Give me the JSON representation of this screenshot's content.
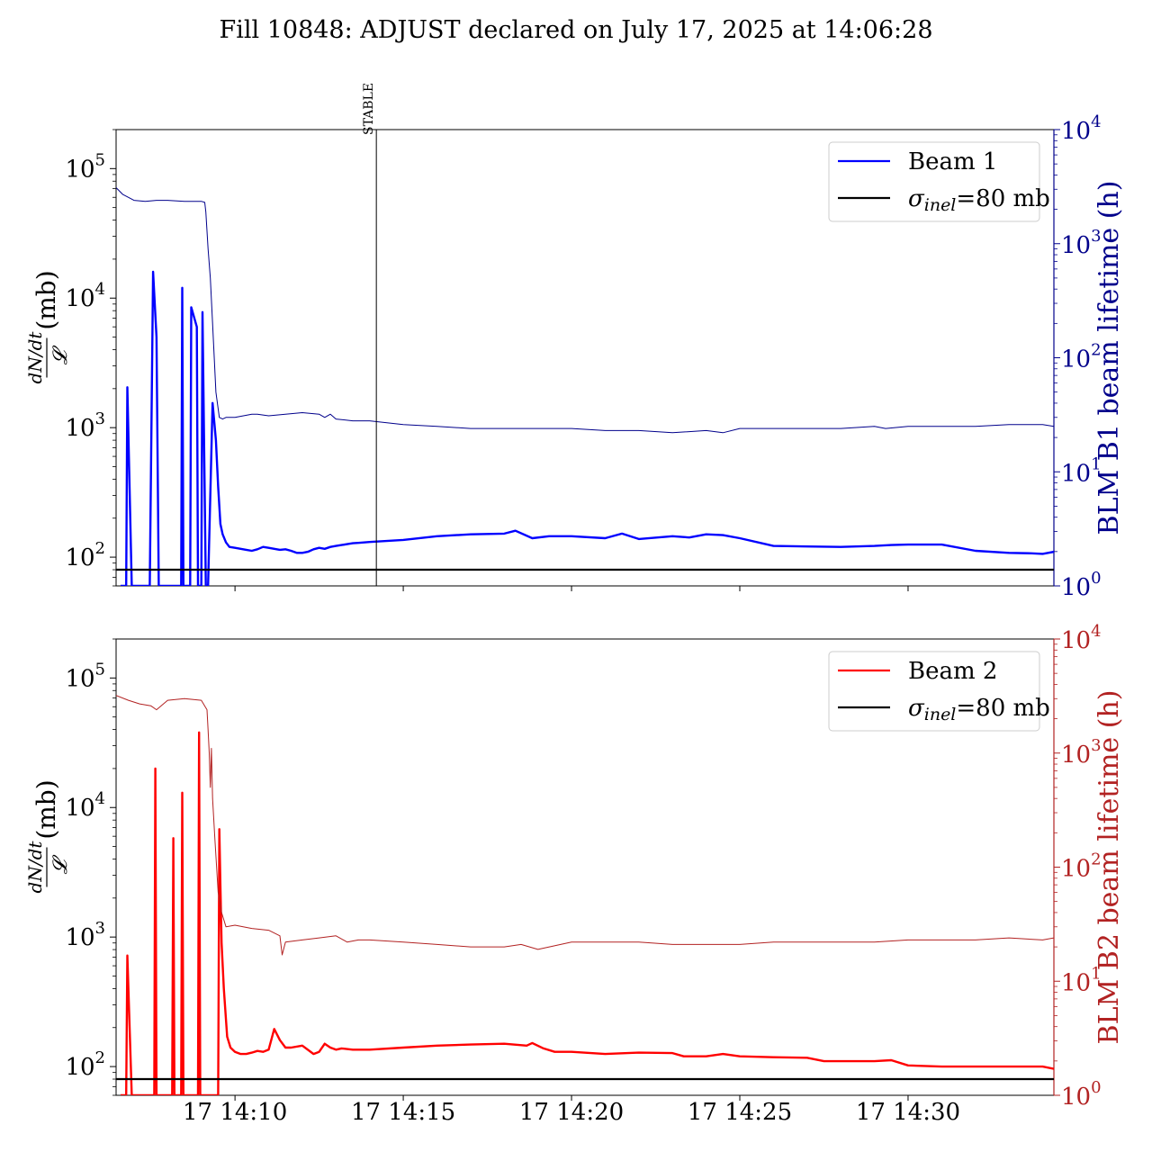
{
  "title": "Fill 10848: ADJUST declared on July 17, 2025 at 14:06:28",
  "colors": {
    "beam1": "#0000ff",
    "beam1_lifetime": "#00008b",
    "beam2": "#ff0000",
    "beam2_lifetime": "#b22222",
    "sigma_line": "#000000"
  },
  "chart_data": [
    {
      "type": "line",
      "panel": "top",
      "ylabel_left": "dN/dt / 𝓛 (mb)",
      "ylabel_right": "BLM B1 beam lifetime (h)",
      "y_scale": "log",
      "ylim_left": [
        60,
        200000
      ],
      "ylim_right": [
        1,
        10000
      ],
      "xlim": [
        "14:06:28",
        "14:34:20"
      ],
      "xticks": [],
      "marker": {
        "label": "STABLE",
        "x": "14:14:12"
      },
      "legend": {
        "placement": "top-right",
        "entries": [
          "Beam 1",
          "σinel=80 mb"
        ]
      },
      "series": [
        {
          "name": "Beam 1",
          "axis": "left",
          "x": [
            "14:06:36",
            "14:06:46",
            "14:06:48",
            "14:06:56",
            "14:07:28",
            "14:07:34",
            "14:07:40",
            "14:07:44",
            "14:07:46",
            "14:08:24",
            "14:08:26",
            "14:08:28",
            "14:08:40",
            "14:08:42",
            "14:08:52",
            "14:08:54",
            "14:09:00",
            "14:09:02",
            "14:09:08",
            "14:09:12",
            "14:09:20",
            "14:09:26",
            "14:09:30",
            "14:09:34",
            "14:09:38",
            "14:09:44",
            "14:09:50",
            "14:10:00",
            "14:10:10",
            "14:10:20",
            "14:10:30",
            "14:10:40",
            "14:10:50",
            "14:11:00",
            "14:11:10",
            "14:11:20",
            "14:11:30",
            "14:11:40",
            "14:11:50",
            "14:12:00",
            "14:12:10",
            "14:12:20",
            "14:12:30",
            "14:12:40",
            "14:12:50",
            "14:13:00",
            "14:13:10",
            "14:13:20",
            "14:13:30",
            "14:13:40",
            "14:13:50",
            "14:14:00",
            "14:15:00",
            "14:16:00",
            "14:17:00",
            "14:18:00",
            "14:18:20",
            "14:18:50",
            "14:19:20",
            "14:20:00",
            "14:21:00",
            "14:21:30",
            "14:22:00",
            "14:23:00",
            "14:23:30",
            "14:24:00",
            "14:24:30",
            "14:25:00",
            "14:26:00",
            "14:27:00",
            "14:28:00",
            "14:29:00",
            "14:29:30",
            "14:30:00",
            "14:31:00",
            "14:32:00",
            "14:33:00",
            "14:33:40",
            "14:34:00",
            "14:34:20"
          ],
          "y": [
            60,
            60,
            2050,
            60,
            60,
            16000,
            5000,
            60,
            60,
            60,
            12000,
            60,
            60,
            8500,
            6000,
            60,
            60,
            7800,
            60,
            60,
            1550,
            800,
            350,
            180,
            150,
            130,
            120,
            118,
            116,
            114,
            112,
            115,
            120,
            118,
            116,
            114,
            115,
            112,
            108,
            108,
            110,
            115,
            118,
            116,
            120,
            122,
            124,
            126,
            128,
            129,
            130,
            131,
            136,
            145,
            150,
            152,
            160,
            140,
            145,
            145,
            140,
            152,
            138,
            145,
            142,
            150,
            148,
            140,
            122,
            121,
            120,
            122,
            124,
            125,
            125,
            112,
            108,
            107,
            106,
            110
          ],
          "ylog": true
        },
        {
          "name": "",
          "axis": "right",
          "x": [
            "14:06:28",
            "14:06:40",
            "14:07:00",
            "14:07:20",
            "14:07:40",
            "14:08:00",
            "14:08:30",
            "14:09:00",
            "14:09:06",
            "14:09:08",
            "14:09:12",
            "14:09:16",
            "14:09:20",
            "14:09:26",
            "14:09:32",
            "14:09:38",
            "14:09:44",
            "14:10:00",
            "14:10:30",
            "14:10:40",
            "14:11:00",
            "14:11:30",
            "14:12:00",
            "14:12:30",
            "14:12:40",
            "14:12:50",
            "14:13:00",
            "14:13:30",
            "14:13:40",
            "14:14:00",
            "14:15:00",
            "14:16:00",
            "14:17:00",
            "14:18:00",
            "14:19:00",
            "14:20:00",
            "14:21:00",
            "14:22:00",
            "14:23:00",
            "14:24:00",
            "14:24:30",
            "14:25:00",
            "14:26:00",
            "14:27:00",
            "14:28:00",
            "14:29:00",
            "14:29:20",
            "14:30:00",
            "14:31:00",
            "14:32:00",
            "14:33:00",
            "14:34:00",
            "14:34:20"
          ],
          "y": [
            3100,
            2700,
            2400,
            2350,
            2400,
            2400,
            2350,
            2350,
            2300,
            1900,
            900,
            500,
            200,
            50,
            30,
            29,
            30,
            30,
            32,
            32,
            31,
            32,
            33,
            32,
            30,
            32,
            29,
            28,
            28,
            28,
            26,
            25,
            24,
            24,
            24,
            24,
            23,
            23,
            22,
            23,
            22,
            24,
            24,
            24,
            24,
            25,
            24,
            25,
            25,
            25,
            26,
            26,
            25
          ],
          "ylog": true
        },
        {
          "name": "σinel=80 mb",
          "axis": "left",
          "x": [
            "14:06:28",
            "14:34:20"
          ],
          "y": [
            80,
            80
          ]
        }
      ]
    },
    {
      "type": "line",
      "panel": "bottom",
      "ylabel_left": "dN/dt / 𝓛 (mb)",
      "ylabel_right": "BLM B2 beam lifetime (h)",
      "y_scale": "log",
      "ylim_left": [
        60,
        200000
      ],
      "ylim_right": [
        1,
        10000
      ],
      "xlim": [
        "14:06:28",
        "14:34:20"
      ],
      "xticks": [
        "17 14:10",
        "17 14:15",
        "17 14:20",
        "17 14:25",
        "17 14:30"
      ],
      "legend": {
        "placement": "top-right",
        "entries": [
          "Beam 2",
          "σinel=80 mb"
        ]
      },
      "series": [
        {
          "name": "Beam 2",
          "axis": "left",
          "x": [
            "14:06:36",
            "14:06:46",
            "14:06:48",
            "14:06:56",
            "14:07:36",
            "14:07:38",
            "14:07:40",
            "14:08:08",
            "14:08:10",
            "14:08:12",
            "14:08:24",
            "14:08:26",
            "14:08:28",
            "14:08:54",
            "14:08:56",
            "14:08:58",
            "14:09:30",
            "14:09:32",
            "14:09:34",
            "14:09:36",
            "14:09:40",
            "14:09:46",
            "14:09:52",
            "14:10:00",
            "14:10:10",
            "14:10:20",
            "14:10:30",
            "14:10:40",
            "14:10:50",
            "14:11:00",
            "14:11:10",
            "14:11:20",
            "14:11:30",
            "14:11:40",
            "14:12:00",
            "14:12:20",
            "14:12:30",
            "14:12:40",
            "14:12:50",
            "14:13:00",
            "14:13:10",
            "14:13:30",
            "14:14:00",
            "14:15:00",
            "14:16:00",
            "14:17:00",
            "14:18:00",
            "14:18:40",
            "14:18:50",
            "14:19:10",
            "14:19:30",
            "14:20:00",
            "14:21:00",
            "14:22:00",
            "14:23:00",
            "14:23:20",
            "14:24:00",
            "14:24:30",
            "14:25:00",
            "14:26:00",
            "14:27:00",
            "14:27:30",
            "14:28:00",
            "14:29:00",
            "14:29:30",
            "14:30:00",
            "14:31:00",
            "14:32:00",
            "14:33:00",
            "14:34:00",
            "14:34:20"
          ],
          "y": [
            60,
            60,
            720,
            60,
            60,
            20000,
            60,
            60,
            5800,
            60,
            60,
            13000,
            60,
            60,
            38000,
            60,
            60,
            6800,
            2500,
            900,
            400,
            170,
            140,
            130,
            125,
            125,
            128,
            132,
            130,
            135,
            195,
            160,
            140,
            140,
            145,
            125,
            130,
            150,
            140,
            135,
            138,
            135,
            135,
            140,
            145,
            148,
            150,
            145,
            152,
            138,
            130,
            130,
            125,
            128,
            127,
            120,
            120,
            125,
            120,
            118,
            117,
            110,
            110,
            110,
            112,
            102,
            100,
            100,
            100,
            100,
            96
          ],
          "ylog": true
        },
        {
          "name": "",
          "axis": "right",
          "x": [
            "14:06:28",
            "14:06:50",
            "14:07:10",
            "14:07:30",
            "14:07:40",
            "14:08:00",
            "14:08:30",
            "14:09:00",
            "14:09:10",
            "14:09:12",
            "14:09:14",
            "14:09:16",
            "14:09:18",
            "14:09:20",
            "14:09:24",
            "14:09:30",
            "14:09:36",
            "14:09:44",
            "14:10:00",
            "14:10:30",
            "14:11:00",
            "14:11:20",
            "14:11:24",
            "14:11:30",
            "14:12:00",
            "14:12:30",
            "14:13:00",
            "14:13:20",
            "14:13:40",
            "14:14:00",
            "14:15:00",
            "14:16:00",
            "14:17:00",
            "14:18:00",
            "14:18:30",
            "14:19:00",
            "14:20:00",
            "14:21:00",
            "14:22:00",
            "14:23:00",
            "14:24:00",
            "14:25:00",
            "14:26:00",
            "14:27:00",
            "14:28:00",
            "14:29:00",
            "14:30:00",
            "14:31:00",
            "14:32:00",
            "14:33:00",
            "14:34:00",
            "14:34:20"
          ],
          "y": [
            3200,
            2900,
            2700,
            2600,
            2400,
            2900,
            3000,
            2900,
            2400,
            1600,
            1000,
            500,
            1100,
            400,
            180,
            60,
            40,
            30,
            31,
            29,
            28,
            25,
            17,
            22,
            23,
            24,
            25,
            22,
            23,
            23,
            22,
            21,
            20,
            20,
            21,
            19,
            22,
            22,
            22,
            21,
            21,
            21,
            22,
            22,
            22,
            22,
            23,
            23,
            23,
            24,
            23,
            24
          ],
          "ylog": true
        },
        {
          "name": "σinel=80 mb",
          "axis": "left",
          "x": [
            "14:06:28",
            "14:34:20"
          ],
          "y": [
            80,
            80
          ]
        }
      ]
    }
  ]
}
